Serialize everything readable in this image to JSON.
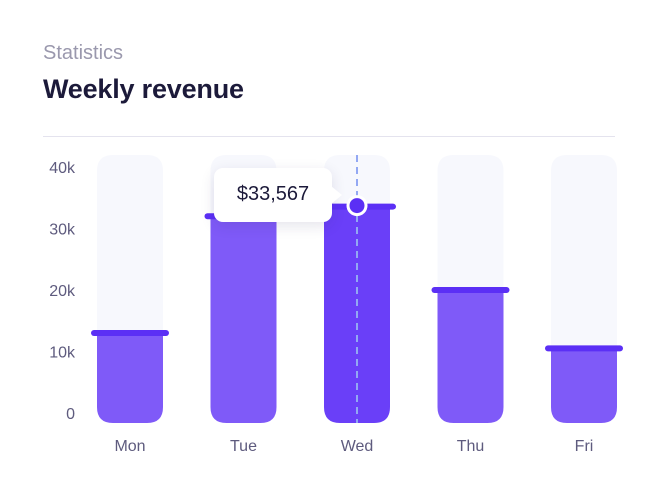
{
  "header": {
    "subtitle": "Statistics",
    "title": "Weekly revenue"
  },
  "tooltip": {
    "label": "$33,567",
    "category": "Wed"
  },
  "colors": {
    "track": "#f7f8fd",
    "bar": "#7f5af8",
    "bar_active": "#6a3ff8",
    "cap": "#5b2ff5",
    "guide": "#93a8f3",
    "axis_text": "#5e5b7e"
  },
  "chart_data": {
    "type": "bar",
    "title": "Weekly revenue",
    "subtitle": "Statistics",
    "xlabel": "",
    "ylabel": "",
    "categories": [
      "Mon",
      "Tue",
      "Wed",
      "Thu",
      "Fri"
    ],
    "values": [
      13000,
      32000,
      33567,
      20000,
      10500
    ],
    "active_index": 2,
    "ylim": [
      0,
      40000
    ],
    "yticks": [
      0,
      10000,
      20000,
      30000,
      40000
    ],
    "ytick_labels": [
      "0",
      "10k",
      "20k",
      "30k",
      "40k"
    ],
    "grid": false,
    "legend": "none"
  }
}
